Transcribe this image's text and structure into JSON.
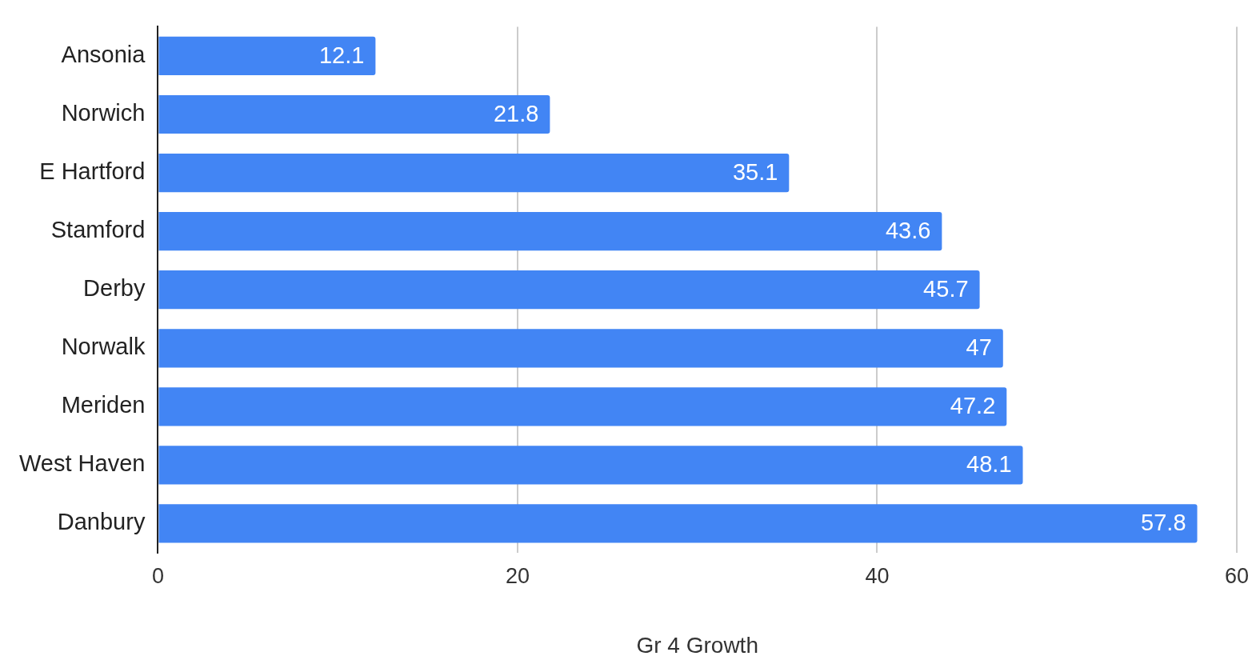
{
  "chart_data": {
    "type": "bar",
    "orientation": "horizontal",
    "xlabel": "Gr 4 Growth",
    "categories": [
      "Ansonia",
      "Norwich",
      "E Hartford",
      "Stamford",
      "Derby",
      "Norwalk",
      "Meriden",
      "West Haven",
      "Danbury"
    ],
    "values": [
      12.1,
      21.8,
      35.1,
      43.6,
      45.7,
      47,
      47.2,
      48.1,
      57.8
    ],
    "color": "#4285f4",
    "xlim": [
      0,
      60
    ],
    "xticks": [
      0,
      20,
      40,
      60
    ],
    "grid": "x",
    "data_labels": true,
    "legend": false
  }
}
